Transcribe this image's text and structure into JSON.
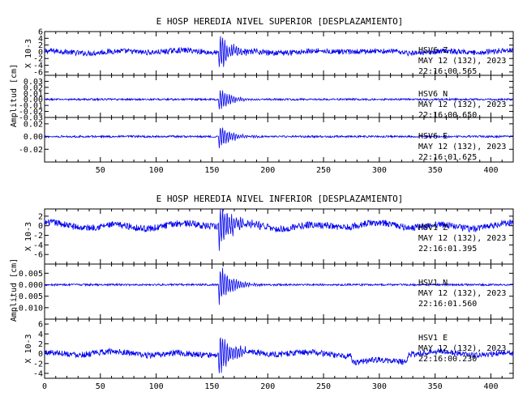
{
  "chart_data": [
    {
      "type": "line",
      "title": "E HOSP HEREDIA NIVEL SUPERIOR [DESPLAZAMIENTO]",
      "ylabel": "Amplitud [cm]",
      "xlim": [
        0,
        420
      ],
      "x_ticks": [
        50,
        100,
        150,
        200,
        250,
        300,
        350,
        400
      ],
      "panels": [
        {
          "name": "HSV6 Z",
          "station": "HSV6",
          "component": "Z",
          "date": "MAY 12 (132), 2023",
          "time": "22:16:00.565",
          "scale_label": "X 10-3",
          "ylim": [
            -7,
            6
          ],
          "y_ticks": [
            "6",
            "4",
            "2",
            "0",
            "-2",
            "-4",
            "-6"
          ],
          "y_tick_values": [
            6,
            4,
            2,
            0,
            -2,
            -4,
            -6
          ],
          "wave": {
            "baseline": 0,
            "amp": 0.8,
            "peak_amp": 6,
            "event_x": 157,
            "drift": 0.35
          }
        },
        {
          "name": "HSV6 N",
          "station": "HSV6",
          "component": "N",
          "date": "MAY 12 (132), 2023",
          "time": "22:16:00.650",
          "scale_label": "",
          "ylim": [
            -0.03,
            0.04
          ],
          "y_ticks": [
            "0.03",
            "0.02",
            "0.01",
            "0.00",
            "-0.01",
            "-0.02",
            "-0.03"
          ],
          "y_tick_values": [
            0.03,
            0.02,
            0.01,
            0.0,
            -0.01,
            -0.02,
            -0.03
          ],
          "wave": {
            "baseline": 0,
            "amp": 0.0015,
            "peak_amp": 0.02,
            "event_x": 157,
            "drift": 0
          }
        },
        {
          "name": "HSV6 E",
          "station": "HSV6",
          "component": "E",
          "date": "MAY 12 (132), 2023",
          "time": "22:16:01.625",
          "scale_label": "",
          "ylim": [
            -0.04,
            0.03
          ],
          "y_ticks": [
            "0.02",
            "0.00",
            "-0.02"
          ],
          "y_tick_values": [
            0.02,
            0.0,
            -0.02
          ],
          "wave": {
            "baseline": 0,
            "amp": 0.0015,
            "peak_amp": 0.02,
            "event_x": 157,
            "drift": 0
          }
        }
      ]
    },
    {
      "type": "line",
      "title": "E HOSP HEREDIA NIVEL INFERIOR [DESPLAZAMIENTO]",
      "ylabel": "Amplitud [cm]",
      "xlim": [
        0,
        420
      ],
      "x_ticks": [
        0,
        50,
        100,
        150,
        200,
        250,
        300,
        350,
        400
      ],
      "panels": [
        {
          "name": "HSV1 Z",
          "station": "HSV1",
          "component": "Z",
          "date": "MAY 12 (132), 2023",
          "time": "22:16:01.395",
          "scale_label": "X 10-3",
          "ylim": [
            -8,
            3.5
          ],
          "y_ticks": [
            "2",
            "0",
            "-2",
            "-4",
            "-6"
          ],
          "y_tick_values": [
            2,
            0,
            -2,
            -4,
            -6
          ],
          "wave": {
            "baseline": 0,
            "amp": 0.7,
            "peak_amp": 5.5,
            "event_x": 157,
            "drift": 0.6
          }
        },
        {
          "name": "HSV1 N",
          "station": "HSV1",
          "component": "N",
          "date": "MAY 12 (132), 2023",
          "time": "22:16:01.560",
          "scale_label": "",
          "ylim": [
            -0.015,
            0.009
          ],
          "y_ticks": [
            "0.005",
            "0.000",
            "-0.005",
            "-0.010"
          ],
          "y_tick_values": [
            0.005,
            0.0,
            -0.005,
            -0.01
          ],
          "wave": {
            "baseline": 0,
            "amp": 0.0004,
            "peak_amp": 0.009,
            "event_x": 157,
            "drift": 0
          }
        },
        {
          "name": "HSV1 E",
          "station": "HSV1",
          "component": "E",
          "date": "MAY 12 (132), 2023",
          "time": "22:16:00.230",
          "scale_label": "X 10-3",
          "ylim": [
            -5,
            7
          ],
          "y_ticks": [
            "6",
            "4",
            "2",
            "0",
            "-2",
            "-4"
          ],
          "y_tick_values": [
            6,
            4,
            2,
            0,
            -2,
            -4
          ],
          "wave": {
            "baseline": 0,
            "amp": 0.6,
            "peak_amp": 5,
            "event_x": 157,
            "drift": 0.5,
            "step_x": 275,
            "step_end": 325,
            "step_val": -1.5
          }
        }
      ]
    }
  ],
  "colors": {
    "trace": "#0000ee",
    "axis": "#000000",
    "background": "#ffffff"
  }
}
